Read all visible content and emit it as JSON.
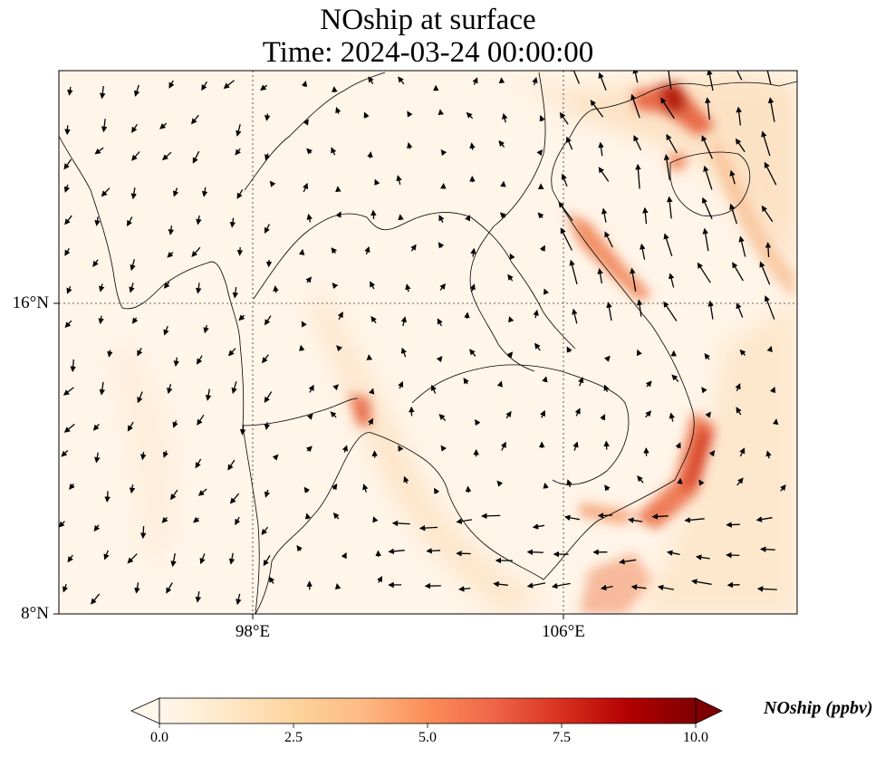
{
  "title": {
    "line1": "NOship at surface",
    "line2": "Time: 2024-03-24 00:00:00"
  },
  "map": {
    "lon_range_deg": [
      93.0,
      112.0
    ],
    "lat_range_deg": [
      8.0,
      22.0
    ],
    "lon_ticks": [
      {
        "value": 98,
        "label": "98°E"
      },
      {
        "value": 106,
        "label": "106°E"
      }
    ],
    "lat_ticks": [
      {
        "value": 16,
        "label": "16°N"
      },
      {
        "value": 8,
        "label": "8°N"
      }
    ],
    "gridlines": "dotted",
    "field_variable": "NOship",
    "colormap": "OrRd",
    "wind_vectors": true
  },
  "colorbar": {
    "label": "NOship (ppbv)",
    "min": 0.0,
    "max": 10.0,
    "ticks": [
      "0.0",
      "2.5",
      "5.0",
      "7.5",
      "10.0"
    ],
    "extend": "both",
    "colors": [
      "#fff7ec",
      "#fee8c8",
      "#fdd49e",
      "#fdbb84",
      "#fc8d59",
      "#ef6548",
      "#d7301f",
      "#b30000",
      "#7f0000"
    ]
  }
}
